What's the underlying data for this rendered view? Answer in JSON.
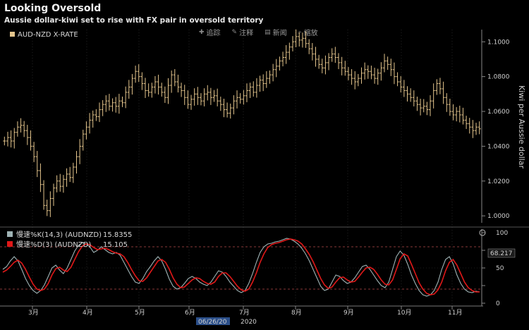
{
  "title": "Looking Oversold",
  "subtitle": "Aussie dollar-kiwi set to rise with FX pair in oversold territory",
  "toolbar": {
    "items": [
      {
        "icon": "plus-icon",
        "label": "追踪"
      },
      {
        "icon": "pencil-icon",
        "label": "注释"
      },
      {
        "icon": "news-icon",
        "label": "新闻"
      },
      {
        "icon": "zoom-icon",
        "label": "缩放"
      }
    ]
  },
  "chart_data": [
    {
      "type": "candlestick",
      "legend": "AUD-NZD X-RATE",
      "y_axis_title": "Kiwi per Aussie dollar",
      "ylim": [
        0.996,
        1.107
      ],
      "yticks": [
        1.0,
        1.02,
        1.04,
        1.06,
        1.08,
        1.1
      ],
      "ytick_labels": [
        "1.0000",
        "1.0200",
        "1.0400",
        "1.0600",
        "1.0800",
        "1.1000"
      ],
      "x_month_labels": [
        "3月",
        "4月",
        "5月",
        "6月",
        "7月",
        "8月",
        "9月",
        "10月",
        "11月"
      ],
      "x_year_label": "2020",
      "x_cursor_label": "06/26/20",
      "closes": [
        1.043,
        1.045,
        1.043,
        1.048,
        1.051,
        1.052,
        1.049,
        1.045,
        1.04,
        1.034,
        1.026,
        1.018,
        1.006,
        1.003,
        1.01,
        1.016,
        1.02,
        1.017,
        1.021,
        1.024,
        1.022,
        1.028,
        1.034,
        1.04,
        1.047,
        1.051,
        1.055,
        1.058,
        1.057,
        1.061,
        1.064,
        1.066,
        1.063,
        1.065,
        1.063,
        1.066,
        1.065,
        1.071,
        1.074,
        1.079,
        1.083,
        1.08,
        1.076,
        1.072,
        1.071,
        1.074,
        1.077,
        1.074,
        1.071,
        1.068,
        1.075,
        1.081,
        1.077,
        1.074,
        1.072,
        1.068,
        1.064,
        1.067,
        1.07,
        1.068,
        1.066,
        1.07,
        1.071,
        1.068,
        1.069,
        1.066,
        1.064,
        1.061,
        1.059,
        1.062,
        1.066,
        1.068,
        1.067,
        1.069,
        1.072,
        1.074,
        1.071,
        1.075,
        1.078,
        1.076,
        1.079,
        1.081,
        1.084,
        1.086,
        1.089,
        1.091,
        1.094,
        1.097,
        1.1,
        1.103,
        1.101,
        1.102,
        1.099,
        1.096,
        1.093,
        1.09,
        1.087,
        1.085,
        1.088,
        1.091,
        1.093,
        1.091,
        1.088,
        1.085,
        1.083,
        1.081,
        1.079,
        1.077,
        1.079,
        1.082,
        1.084,
        1.083,
        1.081,
        1.079,
        1.082,
        1.085,
        1.089,
        1.087,
        1.084,
        1.08,
        1.077,
        1.074,
        1.072,
        1.07,
        1.068,
        1.066,
        1.064,
        1.062,
        1.063,
        1.061,
        1.066,
        1.072,
        1.076,
        1.073,
        1.068,
        1.064,
        1.06,
        1.058,
        1.06,
        1.058,
        1.055,
        1.053,
        1.051,
        1.049,
        1.051,
        1.05
      ]
    },
    {
      "type": "line",
      "ylim": [
        0,
        100
      ],
      "yticks": [
        0,
        25,
        50,
        75,
        100
      ],
      "ytick_labels": [
        "0",
        "",
        "50",
        "",
        "100"
      ],
      "reference_lines": [
        80,
        20
      ],
      "marker_value": "68.217",
      "series": [
        {
          "name": "慢速%K(14,3) (AUDNZD)",
          "last_value": "15.8355",
          "color": "#9fb3b5",
          "values": [
            48,
            52,
            60,
            66,
            60,
            48,
            35,
            25,
            18,
            14,
            18,
            26,
            38,
            50,
            54,
            47,
            42,
            50,
            62,
            74,
            82,
            86,
            84,
            80,
            72,
            75,
            80,
            76,
            72,
            70,
            72,
            68,
            58,
            48,
            38,
            30,
            28,
            35,
            45,
            52,
            60,
            66,
            60,
            48,
            34,
            24,
            20,
            22,
            28,
            35,
            38,
            35,
            30,
            27,
            25,
            30,
            38,
            46,
            44,
            38,
            30,
            24,
            18,
            15,
            18,
            28,
            42,
            58,
            72,
            80,
            84,
            85,
            87,
            88,
            90,
            92,
            91,
            88,
            84,
            78,
            70,
            60,
            48,
            36,
            24,
            18,
            20,
            30,
            40,
            38,
            32,
            28,
            30,
            36,
            44,
            52,
            54,
            48,
            40,
            32,
            25,
            22,
            30,
            48,
            66,
            74,
            68,
            55,
            40,
            28,
            18,
            12,
            10,
            12,
            18,
            30,
            48,
            62,
            66,
            56,
            40,
            28,
            20,
            16,
            15,
            17,
            16
          ]
        },
        {
          "name": "慢速%D(3) (AUDNZD)",
          "last_value": "15.105",
          "color": "#e01818",
          "values": [
            44,
            47,
            52,
            58,
            61,
            57,
            48,
            37,
            27,
            20,
            18,
            20,
            28,
            40,
            49,
            51,
            47,
            45,
            51,
            62,
            73,
            81,
            84,
            83,
            79,
            76,
            77,
            78,
            76,
            73,
            71,
            70,
            66,
            58,
            48,
            39,
            32,
            31,
            36,
            44,
            52,
            60,
            62,
            58,
            48,
            36,
            27,
            22,
            23,
            28,
            33,
            36,
            35,
            31,
            28,
            27,
            30,
            38,
            43,
            43,
            38,
            31,
            24,
            19,
            17,
            20,
            30,
            43,
            58,
            70,
            79,
            83,
            85,
            86,
            88,
            90,
            91,
            90,
            88,
            84,
            77,
            69,
            59,
            47,
            35,
            26,
            21,
            23,
            30,
            36,
            37,
            33,
            30,
            31,
            37,
            44,
            50,
            51,
            48,
            41,
            33,
            27,
            26,
            33,
            48,
            63,
            70,
            67,
            55,
            42,
            29,
            20,
            14,
            12,
            13,
            19,
            30,
            46,
            58,
            62,
            54,
            42,
            30,
            22,
            18,
            16,
            16
          ]
        }
      ]
    }
  ],
  "colors": {
    "background": "#000000",
    "candle": "#e3c48c",
    "grid": "#3a3a3a",
    "axis": "#888888",
    "dashed_ref": "#b84a4a",
    "marker": "#ffffff",
    "cursor_label_bg": "#2b4f8a"
  }
}
